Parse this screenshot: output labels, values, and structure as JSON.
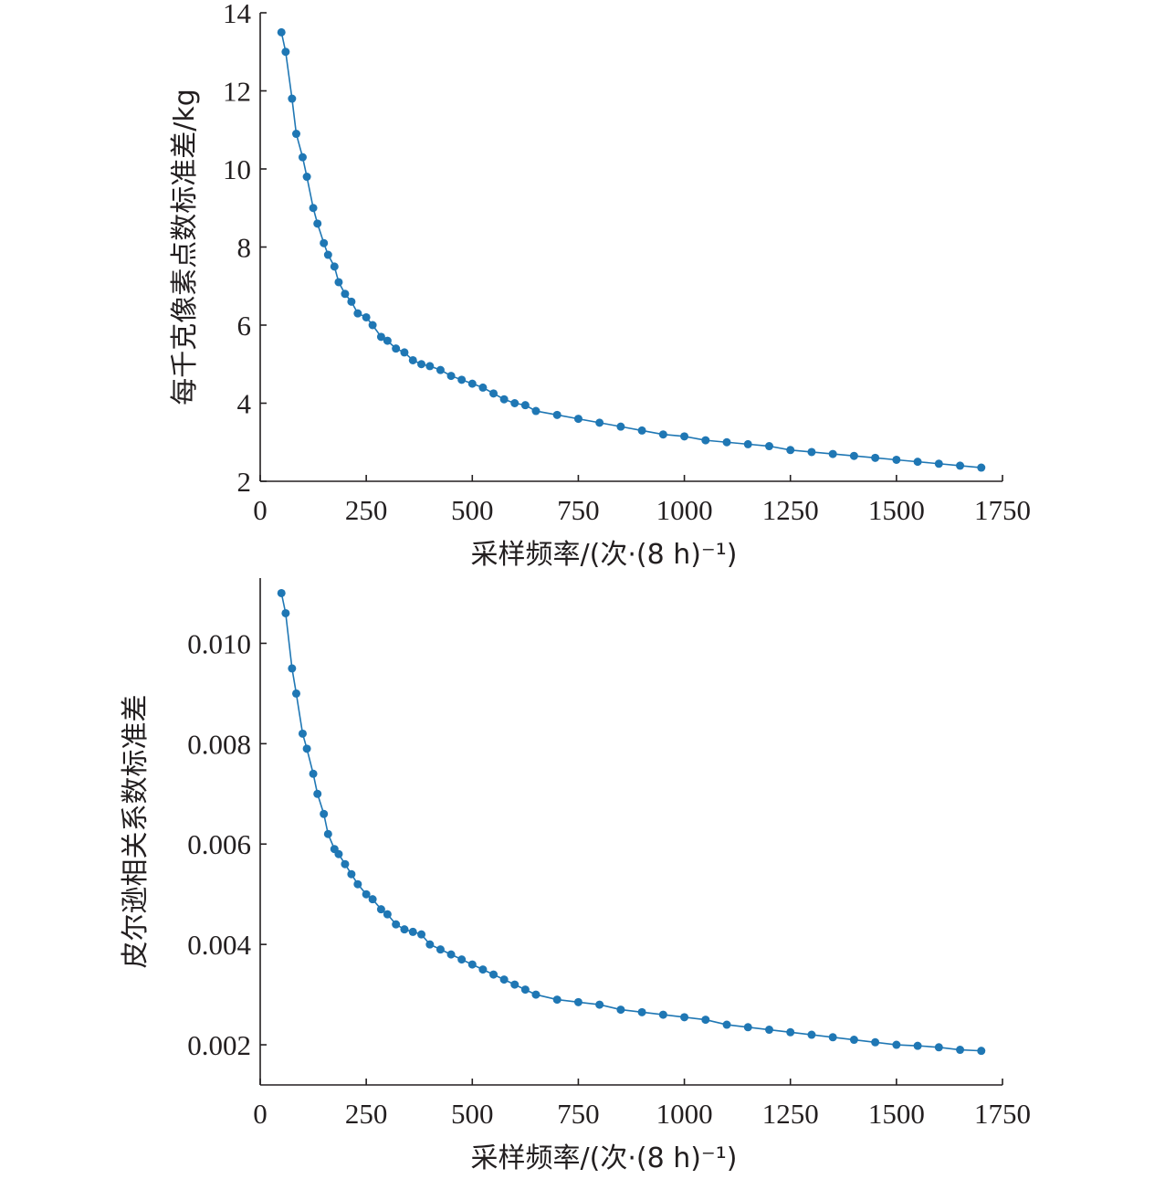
{
  "colors": {
    "series": "#1f77b4",
    "axis": "#231f20",
    "background": "#ffffff"
  },
  "chart_data": [
    {
      "type": "line",
      "xlabel": "采样频率/(次·(8 h)⁻¹)",
      "ylabel": "每千克像素点数标准差/kg",
      "xlim": [
        0,
        1750
      ],
      "ylim": [
        2,
        14
      ],
      "xticks": [
        0,
        250,
        500,
        750,
        1000,
        1250,
        1500,
        1750
      ],
      "xtick_labels": [
        "0",
        "250",
        "500",
        "750",
        "1000",
        "1250",
        "1500",
        "1750"
      ],
      "yticks": [
        2,
        4,
        6,
        8,
        10,
        12,
        14
      ],
      "ytick_labels": [
        "2",
        "4",
        "6",
        "8",
        "10",
        "12",
        "14"
      ],
      "grid": false,
      "series": [
        {
          "x": [
            50,
            60,
            75,
            85,
            100,
            110,
            125,
            135,
            150,
            160,
            175,
            185,
            200,
            215,
            230,
            250,
            265,
            285,
            300,
            320,
            340,
            360,
            380,
            400,
            425,
            450,
            475,
            500,
            525,
            550,
            575,
            600,
            625,
            650,
            700,
            750,
            800,
            850,
            900,
            950,
            1000,
            1050,
            1100,
            1150,
            1200,
            1250,
            1300,
            1350,
            1400,
            1450,
            1500,
            1550,
            1600,
            1650,
            1700
          ],
          "y": [
            13.5,
            13.0,
            11.8,
            10.9,
            10.3,
            9.8,
            9.0,
            8.6,
            8.1,
            7.8,
            7.5,
            7.1,
            6.8,
            6.6,
            6.3,
            6.2,
            6.0,
            5.7,
            5.6,
            5.4,
            5.3,
            5.1,
            5.0,
            4.95,
            4.85,
            4.7,
            4.6,
            4.5,
            4.4,
            4.25,
            4.1,
            4.0,
            3.95,
            3.8,
            3.7,
            3.6,
            3.5,
            3.4,
            3.3,
            3.2,
            3.15,
            3.05,
            3.0,
            2.95,
            2.9,
            2.8,
            2.75,
            2.7,
            2.65,
            2.6,
            2.55,
            2.5,
            2.45,
            2.4,
            2.35
          ]
        }
      ]
    },
    {
      "type": "line",
      "xlabel": "采样频率/(次·(8 h)⁻¹)",
      "ylabel": "皮尔逊相关系数标准差",
      "xlim": [
        0,
        1750
      ],
      "ylim": [
        0.0012,
        0.0113
      ],
      "xticks": [
        0,
        250,
        500,
        750,
        1000,
        1250,
        1500,
        1750
      ],
      "xtick_labels": [
        "0",
        "250",
        "500",
        "750",
        "1000",
        "1250",
        "1500",
        "1750"
      ],
      "yticks": [
        0.002,
        0.004,
        0.006,
        0.008,
        0.01
      ],
      "ytick_labels": [
        "0.002",
        "0.004",
        "0.006",
        "0.008",
        "0.010"
      ],
      "grid": false,
      "series": [
        {
          "x": [
            50,
            60,
            75,
            85,
            100,
            110,
            125,
            135,
            150,
            160,
            175,
            185,
            200,
            215,
            230,
            250,
            265,
            285,
            300,
            320,
            340,
            360,
            380,
            400,
            425,
            450,
            475,
            500,
            525,
            550,
            575,
            600,
            625,
            650,
            700,
            750,
            800,
            850,
            900,
            950,
            1000,
            1050,
            1100,
            1150,
            1200,
            1250,
            1300,
            1350,
            1400,
            1450,
            1500,
            1550,
            1600,
            1650,
            1700
          ],
          "y": [
            0.011,
            0.0106,
            0.0095,
            0.009,
            0.0082,
            0.0079,
            0.0074,
            0.007,
            0.0066,
            0.0062,
            0.0059,
            0.0058,
            0.0056,
            0.0054,
            0.0052,
            0.005,
            0.0049,
            0.0047,
            0.0046,
            0.0044,
            0.0043,
            0.00425,
            0.0042,
            0.004,
            0.0039,
            0.0038,
            0.0037,
            0.0036,
            0.0035,
            0.0034,
            0.0033,
            0.0032,
            0.0031,
            0.003,
            0.0029,
            0.00285,
            0.0028,
            0.0027,
            0.00265,
            0.0026,
            0.00255,
            0.0025,
            0.0024,
            0.00235,
            0.0023,
            0.00225,
            0.0022,
            0.00215,
            0.0021,
            0.00205,
            0.002,
            0.00198,
            0.00195,
            0.0019,
            0.00188
          ]
        }
      ]
    }
  ]
}
